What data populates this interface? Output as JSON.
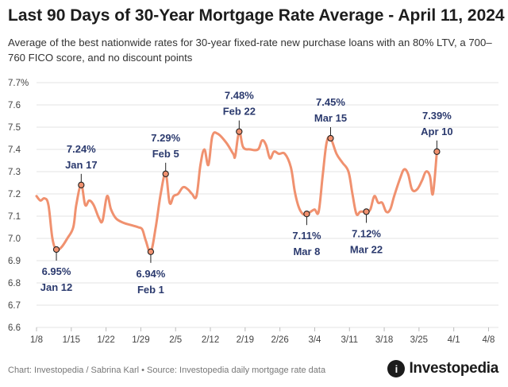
{
  "header": {
    "title": "Last 90 Days of 30-Year Mortgage Rate Average - April 11, 2024",
    "subtitle": "Average of the best nationwide rates for 30-year fixed-rate new purchase loans with an 80% LTV, a 700–760 FICO score, and no discount points"
  },
  "footer": {
    "credit": "Chart: Investopedia / Sabrina Karl • Source: Investopedia daily mortgage rate data",
    "brand": "Investopedia",
    "brand_mark": "i"
  },
  "colors": {
    "line": "#f0916f",
    "annotation": "#2b3a6e",
    "grid": "#e3e3e3",
    "axis_text": "#444444"
  },
  "chart_data": {
    "type": "line",
    "title": "Last 90 Days of 30-Year Mortgage Rate Average - April 11, 2024",
    "xlabel": "",
    "ylabel": "",
    "ylim": [
      6.6,
      7.7
    ],
    "yticks": [
      "6.6",
      "6.7",
      "6.8",
      "6.9",
      "7.0",
      "7.1",
      "7.2",
      "7.3",
      "7.4",
      "7.5",
      "7.6",
      "7.7%"
    ],
    "xlim": [
      0,
      93
    ],
    "xticks": [
      {
        "d": 0,
        "label": "1/8"
      },
      {
        "d": 7,
        "label": "1/15"
      },
      {
        "d": 14,
        "label": "1/22"
      },
      {
        "d": 21,
        "label": "1/29"
      },
      {
        "d": 28,
        "label": "2/5"
      },
      {
        "d": 35,
        "label": "2/12"
      },
      {
        "d": 42,
        "label": "2/19"
      },
      {
        "d": 49,
        "label": "2/26"
      },
      {
        "d": 56,
        "label": "3/4"
      },
      {
        "d": 63,
        "label": "3/11"
      },
      {
        "d": 70,
        "label": "3/18"
      },
      {
        "d": 77,
        "label": "3/25"
      },
      {
        "d": 84,
        "label": "4/1"
      },
      {
        "d": 91,
        "label": "4/8"
      }
    ],
    "series": [
      {
        "name": "30-Year Mortgage Rate Average",
        "points": [
          [
            0,
            7.19
          ],
          [
            0.8,
            7.17
          ],
          [
            1.6,
            7.18
          ],
          [
            2.4,
            7.15
          ],
          [
            3.2,
            7.0
          ],
          [
            4,
            6.95
          ],
          [
            5,
            6.96
          ],
          [
            6.2,
            7.0
          ],
          [
            7.4,
            7.05
          ],
          [
            8,
            7.15
          ],
          [
            9,
            7.24
          ],
          [
            9.8,
            7.15
          ],
          [
            10.6,
            7.17
          ],
          [
            11.5,
            7.15
          ],
          [
            12.6,
            7.09
          ],
          [
            13.3,
            7.08
          ],
          [
            14.2,
            7.19
          ],
          [
            15,
            7.13
          ],
          [
            16,
            7.09
          ],
          [
            17.5,
            7.07
          ],
          [
            19,
            7.06
          ],
          [
            20.5,
            7.05
          ],
          [
            21.3,
            7.04
          ],
          [
            22,
            6.99
          ],
          [
            23,
            6.94
          ],
          [
            24,
            7.05
          ],
          [
            25,
            7.2
          ],
          [
            26,
            7.29
          ],
          [
            26.8,
            7.16
          ],
          [
            27.6,
            7.19
          ],
          [
            28.5,
            7.2
          ],
          [
            29.5,
            7.23
          ],
          [
            30.5,
            7.22
          ],
          [
            31.3,
            7.2
          ],
          [
            32.2,
            7.19
          ],
          [
            33,
            7.33
          ],
          [
            33.8,
            7.4
          ],
          [
            34.6,
            7.33
          ],
          [
            35.4,
            7.46
          ],
          [
            36.5,
            7.47
          ],
          [
            38.2,
            7.43
          ],
          [
            39.6,
            7.38
          ],
          [
            40,
            7.37
          ],
          [
            40.8,
            7.48
          ],
          [
            41.6,
            7.41
          ],
          [
            43,
            7.4
          ],
          [
            44.6,
            7.4
          ],
          [
            45.4,
            7.44
          ],
          [
            46.2,
            7.42
          ],
          [
            47,
            7.36
          ],
          [
            47.8,
            7.39
          ],
          [
            48.8,
            7.38
          ],
          [
            50,
            7.38
          ],
          [
            51.2,
            7.32
          ],
          [
            52,
            7.21
          ],
          [
            52.8,
            7.14
          ],
          [
            53.6,
            7.11
          ],
          [
            54.4,
            7.11
          ],
          [
            55.2,
            7.12
          ],
          [
            56,
            7.13
          ],
          [
            56.8,
            7.12
          ],
          [
            57.6,
            7.28
          ],
          [
            58.4,
            7.43
          ],
          [
            59.2,
            7.45
          ],
          [
            60.4,
            7.38
          ],
          [
            61.6,
            7.34
          ],
          [
            62.8,
            7.3
          ],
          [
            63.6,
            7.2
          ],
          [
            64.4,
            7.11
          ],
          [
            65.2,
            7.12
          ],
          [
            66.4,
            7.12
          ],
          [
            67.2,
            7.13
          ],
          [
            68,
            7.19
          ],
          [
            68.8,
            7.16
          ],
          [
            69.6,
            7.16
          ],
          [
            70.4,
            7.12
          ],
          [
            71.2,
            7.13
          ],
          [
            72,
            7.19
          ],
          [
            73.2,
            7.27
          ],
          [
            74,
            7.31
          ],
          [
            74.8,
            7.29
          ],
          [
            75.6,
            7.22
          ],
          [
            76.6,
            7.22
          ],
          [
            77.6,
            7.26
          ],
          [
            78.4,
            7.3
          ],
          [
            79.2,
            7.28
          ],
          [
            79.8,
            7.2
          ],
          [
            80.6,
            7.39
          ]
        ]
      }
    ],
    "annotations": [
      {
        "x": 4,
        "y": 6.95,
        "value": "6.95%",
        "date": "Jan 12",
        "pos": "below"
      },
      {
        "x": 9,
        "y": 7.24,
        "value": "7.24%",
        "date": "Jan 17",
        "pos": "above"
      },
      {
        "x": 23,
        "y": 6.94,
        "value": "6.94%",
        "date": "Feb 1",
        "pos": "below"
      },
      {
        "x": 26,
        "y": 7.29,
        "value": "7.29%",
        "date": "Feb 5",
        "pos": "above"
      },
      {
        "x": 40.8,
        "y": 7.48,
        "value": "7.48%",
        "date": "Feb 22",
        "pos": "above"
      },
      {
        "x": 54.4,
        "y": 7.11,
        "value": "7.11%",
        "date": "Mar 8",
        "pos": "below"
      },
      {
        "x": 59.2,
        "y": 7.45,
        "value": "7.45%",
        "date": "Mar 15",
        "pos": "above"
      },
      {
        "x": 66.4,
        "y": 7.12,
        "value": "7.12%",
        "date": "Mar 22",
        "pos": "below"
      },
      {
        "x": 80.6,
        "y": 7.39,
        "value": "7.39%",
        "date": "Apr 10",
        "pos": "above"
      }
    ]
  }
}
